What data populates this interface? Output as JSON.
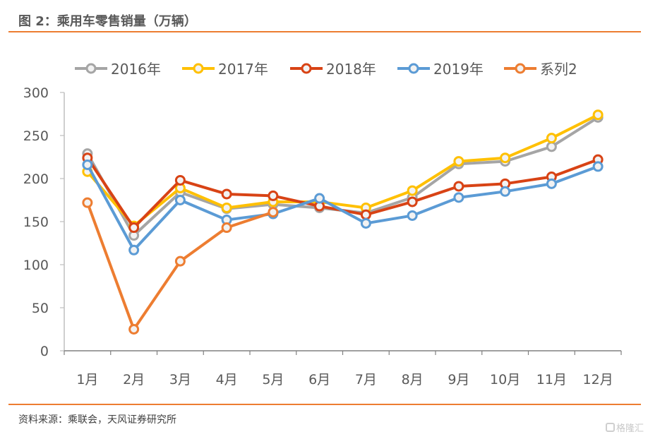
{
  "figure": {
    "title": "图 2：乘用车零售销量（万辆）",
    "source": "资料来源：乘联会，天风证券研究所",
    "watermark": "格隆汇",
    "accent_color": "#ED7D31"
  },
  "chart_data": {
    "type": "line",
    "title": "乘用车零售销量（万辆）",
    "xlabel": "",
    "ylabel": "",
    "categories": [
      "1月",
      "2月",
      "3月",
      "4月",
      "5月",
      "6月",
      "7月",
      "8月",
      "9月",
      "10月",
      "11月",
      "12月"
    ],
    "ylim": [
      0,
      300
    ],
    "yticks": [
      0,
      50,
      100,
      150,
      200,
      250,
      300
    ],
    "ytick_labels": [
      "0",
      "50",
      "100",
      "150",
      "200",
      "250",
      "300"
    ],
    "grid": false,
    "legend_position": "top",
    "series": [
      {
        "name": "2016年",
        "color": "#A5A5A5",
        "values": [
          229,
          134,
          184,
          165,
          170,
          166,
          160,
          178,
          217,
          220,
          237,
          271
        ]
      },
      {
        "name": "2017年",
        "color": "#FFC000",
        "values": [
          208,
          145,
          189,
          166,
          173,
          173,
          166,
          186,
          220,
          224,
          247,
          274
        ]
      },
      {
        "name": "2018年",
        "color": "#D84315",
        "values": [
          224,
          143,
          198,
          182,
          180,
          168,
          158,
          173,
          191,
          194,
          202,
          222
        ]
      },
      {
        "name": "2019年",
        "color": "#5B9BD5",
        "values": [
          216,
          117,
          175,
          152,
          159,
          177,
          148,
          157,
          178,
          185,
          194,
          214
        ]
      },
      {
        "name": "系列2",
        "color": "#ED7D31",
        "values": [
          172,
          25,
          104,
          143,
          161,
          null,
          null,
          null,
          null,
          null,
          null,
          null
        ]
      }
    ]
  }
}
